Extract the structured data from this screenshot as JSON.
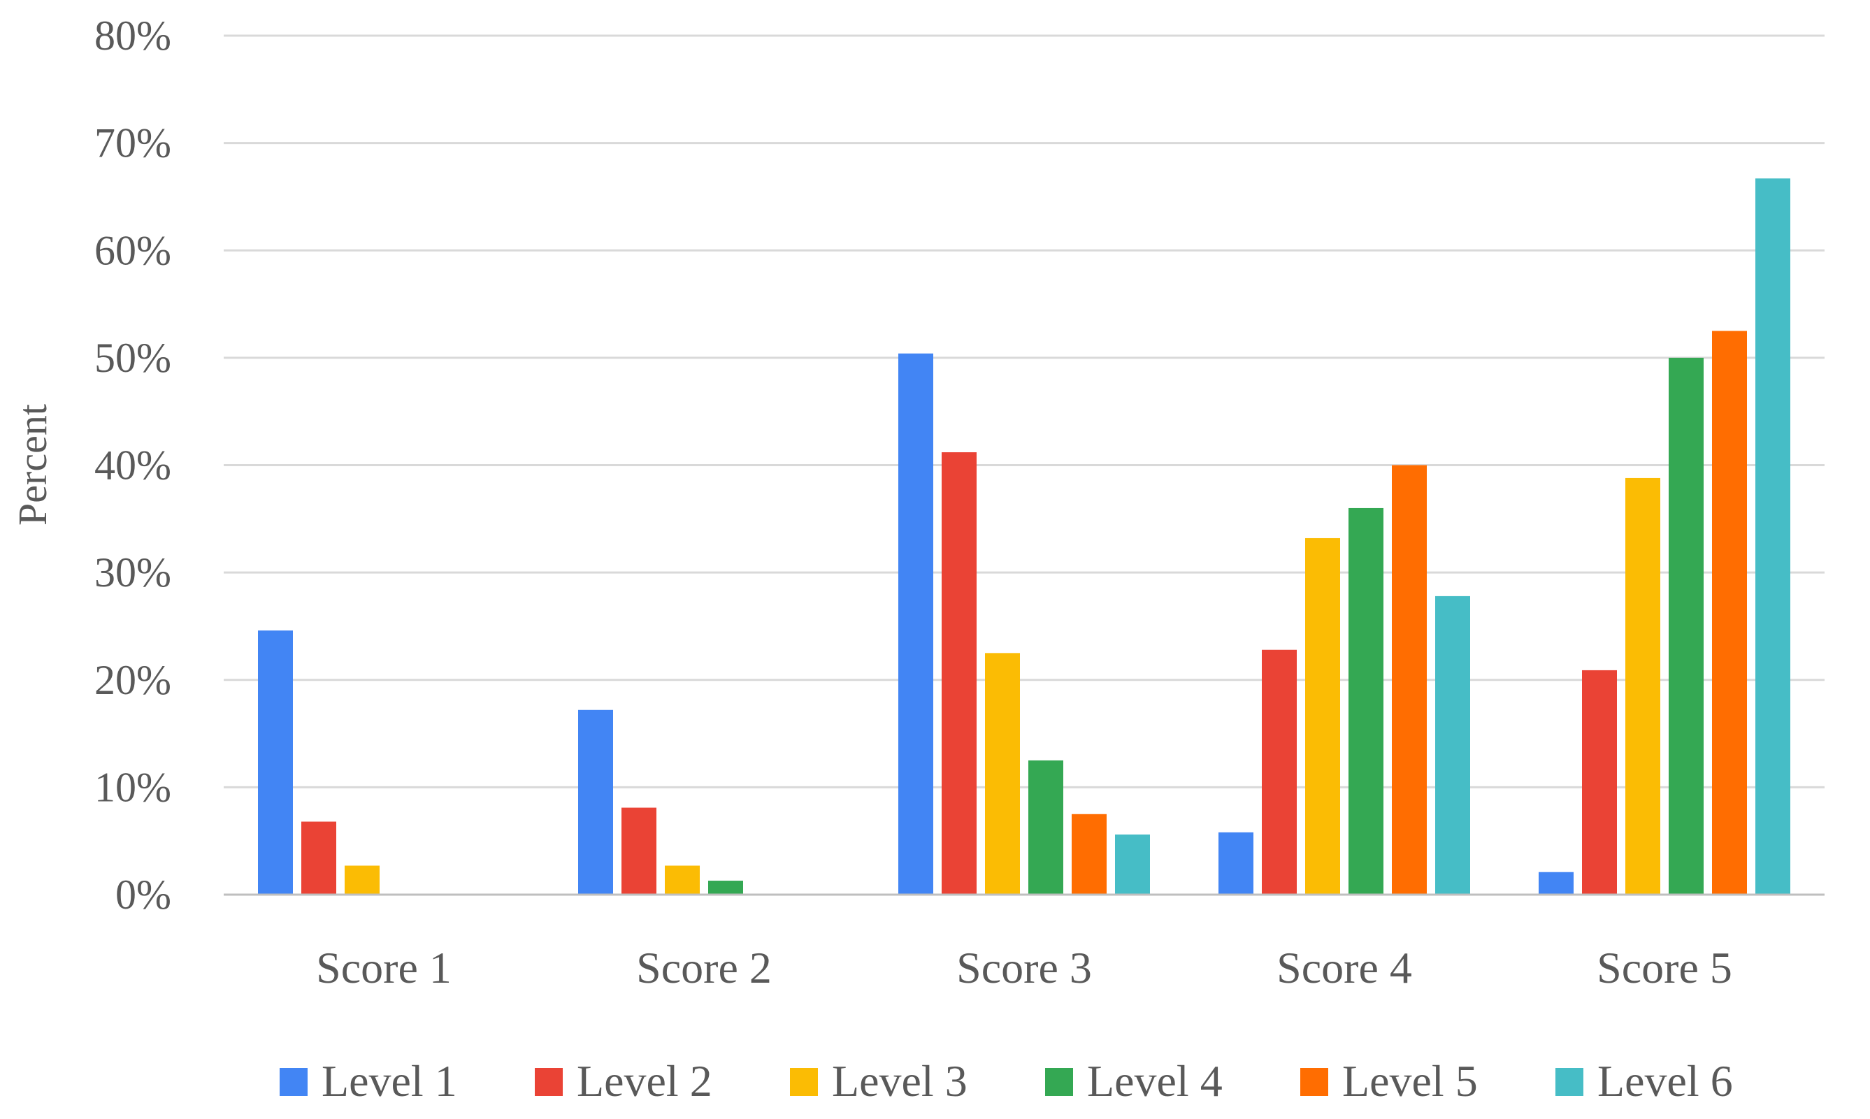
{
  "chart_data": {
    "type": "bar",
    "title": "",
    "xlabel": "",
    "ylabel": "Percent",
    "ylim": [
      0,
      80
    ],
    "yticks": [
      0,
      10,
      20,
      30,
      40,
      50,
      60,
      70,
      80
    ],
    "ytick_suffix": "%",
    "grid": true,
    "legend_position": "bottom",
    "categories": [
      "Score 1",
      "Score 2",
      "Score 3",
      "Score 4",
      "Score 5"
    ],
    "series": [
      {
        "name": "Level 1",
        "color": "#4285F4",
        "values": [
          24.6,
          17.2,
          50.4,
          5.8,
          2.1
        ]
      },
      {
        "name": "Level 2",
        "color": "#EA4335",
        "values": [
          6.8,
          8.1,
          41.2,
          22.8,
          20.9
        ]
      },
      {
        "name": "Level 3",
        "color": "#FBBC04",
        "values": [
          2.7,
          2.7,
          22.5,
          33.2,
          38.8
        ]
      },
      {
        "name": "Level 4",
        "color": "#34A853",
        "values": [
          0,
          1.3,
          12.5,
          36.0,
          50.0
        ]
      },
      {
        "name": "Level 5",
        "color": "#FF6D01",
        "values": [
          0,
          0,
          7.5,
          40.0,
          52.5
        ]
      },
      {
        "name": "Level 6",
        "color": "#46BDC6",
        "values": [
          0,
          0,
          5.6,
          27.8,
          66.7
        ]
      }
    ]
  }
}
